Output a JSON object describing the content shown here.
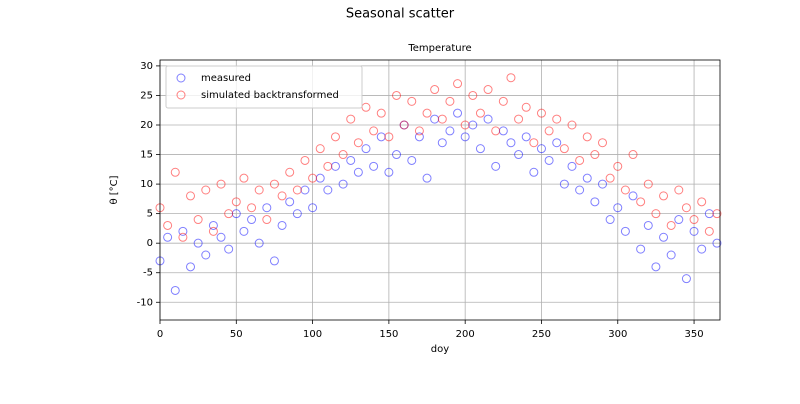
{
  "chart_data": {
    "type": "scatter",
    "suptitle": "Seasonal scatter",
    "title": "Temperature",
    "x_label": "doy",
    "y_label": "θ [°C]",
    "x": [
      0,
      5,
      10,
      15,
      20,
      25,
      30,
      35,
      40,
      45,
      50,
      55,
      60,
      65,
      70,
      75,
      80,
      85,
      90,
      95,
      100,
      105,
      110,
      115,
      120,
      125,
      130,
      135,
      140,
      145,
      150,
      155,
      160,
      165,
      170,
      175,
      180,
      185,
      190,
      195,
      200,
      205,
      210,
      215,
      220,
      225,
      230,
      235,
      240,
      245,
      250,
      255,
      260,
      265,
      270,
      275,
      280,
      285,
      290,
      295,
      300,
      305,
      310,
      315,
      320,
      325,
      330,
      335,
      340,
      345,
      350,
      355,
      360,
      365
    ],
    "series": [
      {
        "name": "measured",
        "color": "#0000ff",
        "values": [
          -3,
          1,
          -8,
          2,
          -4,
          0,
          -2,
          3,
          1,
          -1,
          5,
          2,
          4,
          0,
          6,
          -3,
          3,
          7,
          5,
          9,
          6,
          11,
          9,
          13,
          10,
          14,
          12,
          16,
          13,
          18,
          12,
          15,
          20,
          14,
          18,
          11,
          21,
          17,
          19,
          22,
          18,
          20,
          16,
          21,
          13,
          19,
          17,
          15,
          18,
          12,
          16,
          14,
          17,
          10,
          13,
          9,
          11,
          7,
          10,
          4,
          6,
          2,
          8,
          -1,
          3,
          -4,
          1,
          -2,
          4,
          -6,
          2,
          -1,
          5,
          0
        ]
      },
      {
        "name": "simulated backtransformed",
        "color": "#ff0000",
        "values": [
          6,
          3,
          12,
          1,
          8,
          4,
          9,
          2,
          10,
          5,
          7,
          11,
          6,
          9,
          4,
          10,
          8,
          12,
          9,
          14,
          11,
          16,
          13,
          18,
          15,
          21,
          17,
          23,
          19,
          22,
          18,
          25,
          20,
          24,
          19,
          22,
          26,
          21,
          24,
          27,
          20,
          25,
          22,
          26,
          19,
          24,
          28,
          21,
          23,
          17,
          22,
          19,
          21,
          16,
          20,
          14,
          18,
          15,
          17,
          11,
          13,
          9,
          15,
          7,
          10,
          5,
          8,
          3,
          9,
          6,
          4,
          7,
          2,
          5
        ]
      }
    ],
    "xlim": [
      0,
      367
    ],
    "ylim": [
      -13,
      31
    ],
    "xticks": [
      0,
      50,
      100,
      150,
      200,
      250,
      300,
      350
    ],
    "yticks": [
      -10,
      -5,
      0,
      5,
      10,
      15,
      20,
      25,
      30
    ],
    "grid": true,
    "legend": "upper left"
  }
}
